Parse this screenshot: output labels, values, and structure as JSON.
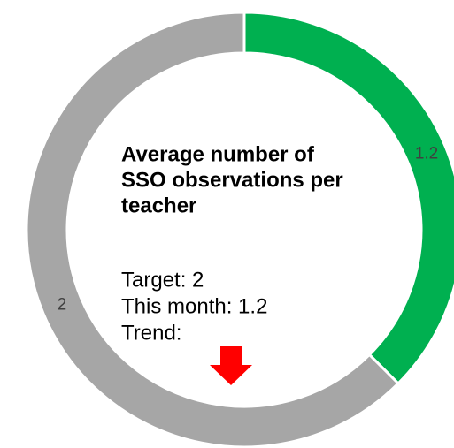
{
  "chart_data": {
    "type": "donut",
    "categories": [
      null,
      null
    ],
    "values": [
      1.2,
      2
    ],
    "colors": [
      "#00b050",
      "#a6a6a6"
    ],
    "title_lines": [
      "Average number of",
      "SSO observations per",
      "teacher"
    ],
    "annotations": [
      "Target: 2",
      "This month: 1.2",
      "Trend:"
    ]
  }
}
